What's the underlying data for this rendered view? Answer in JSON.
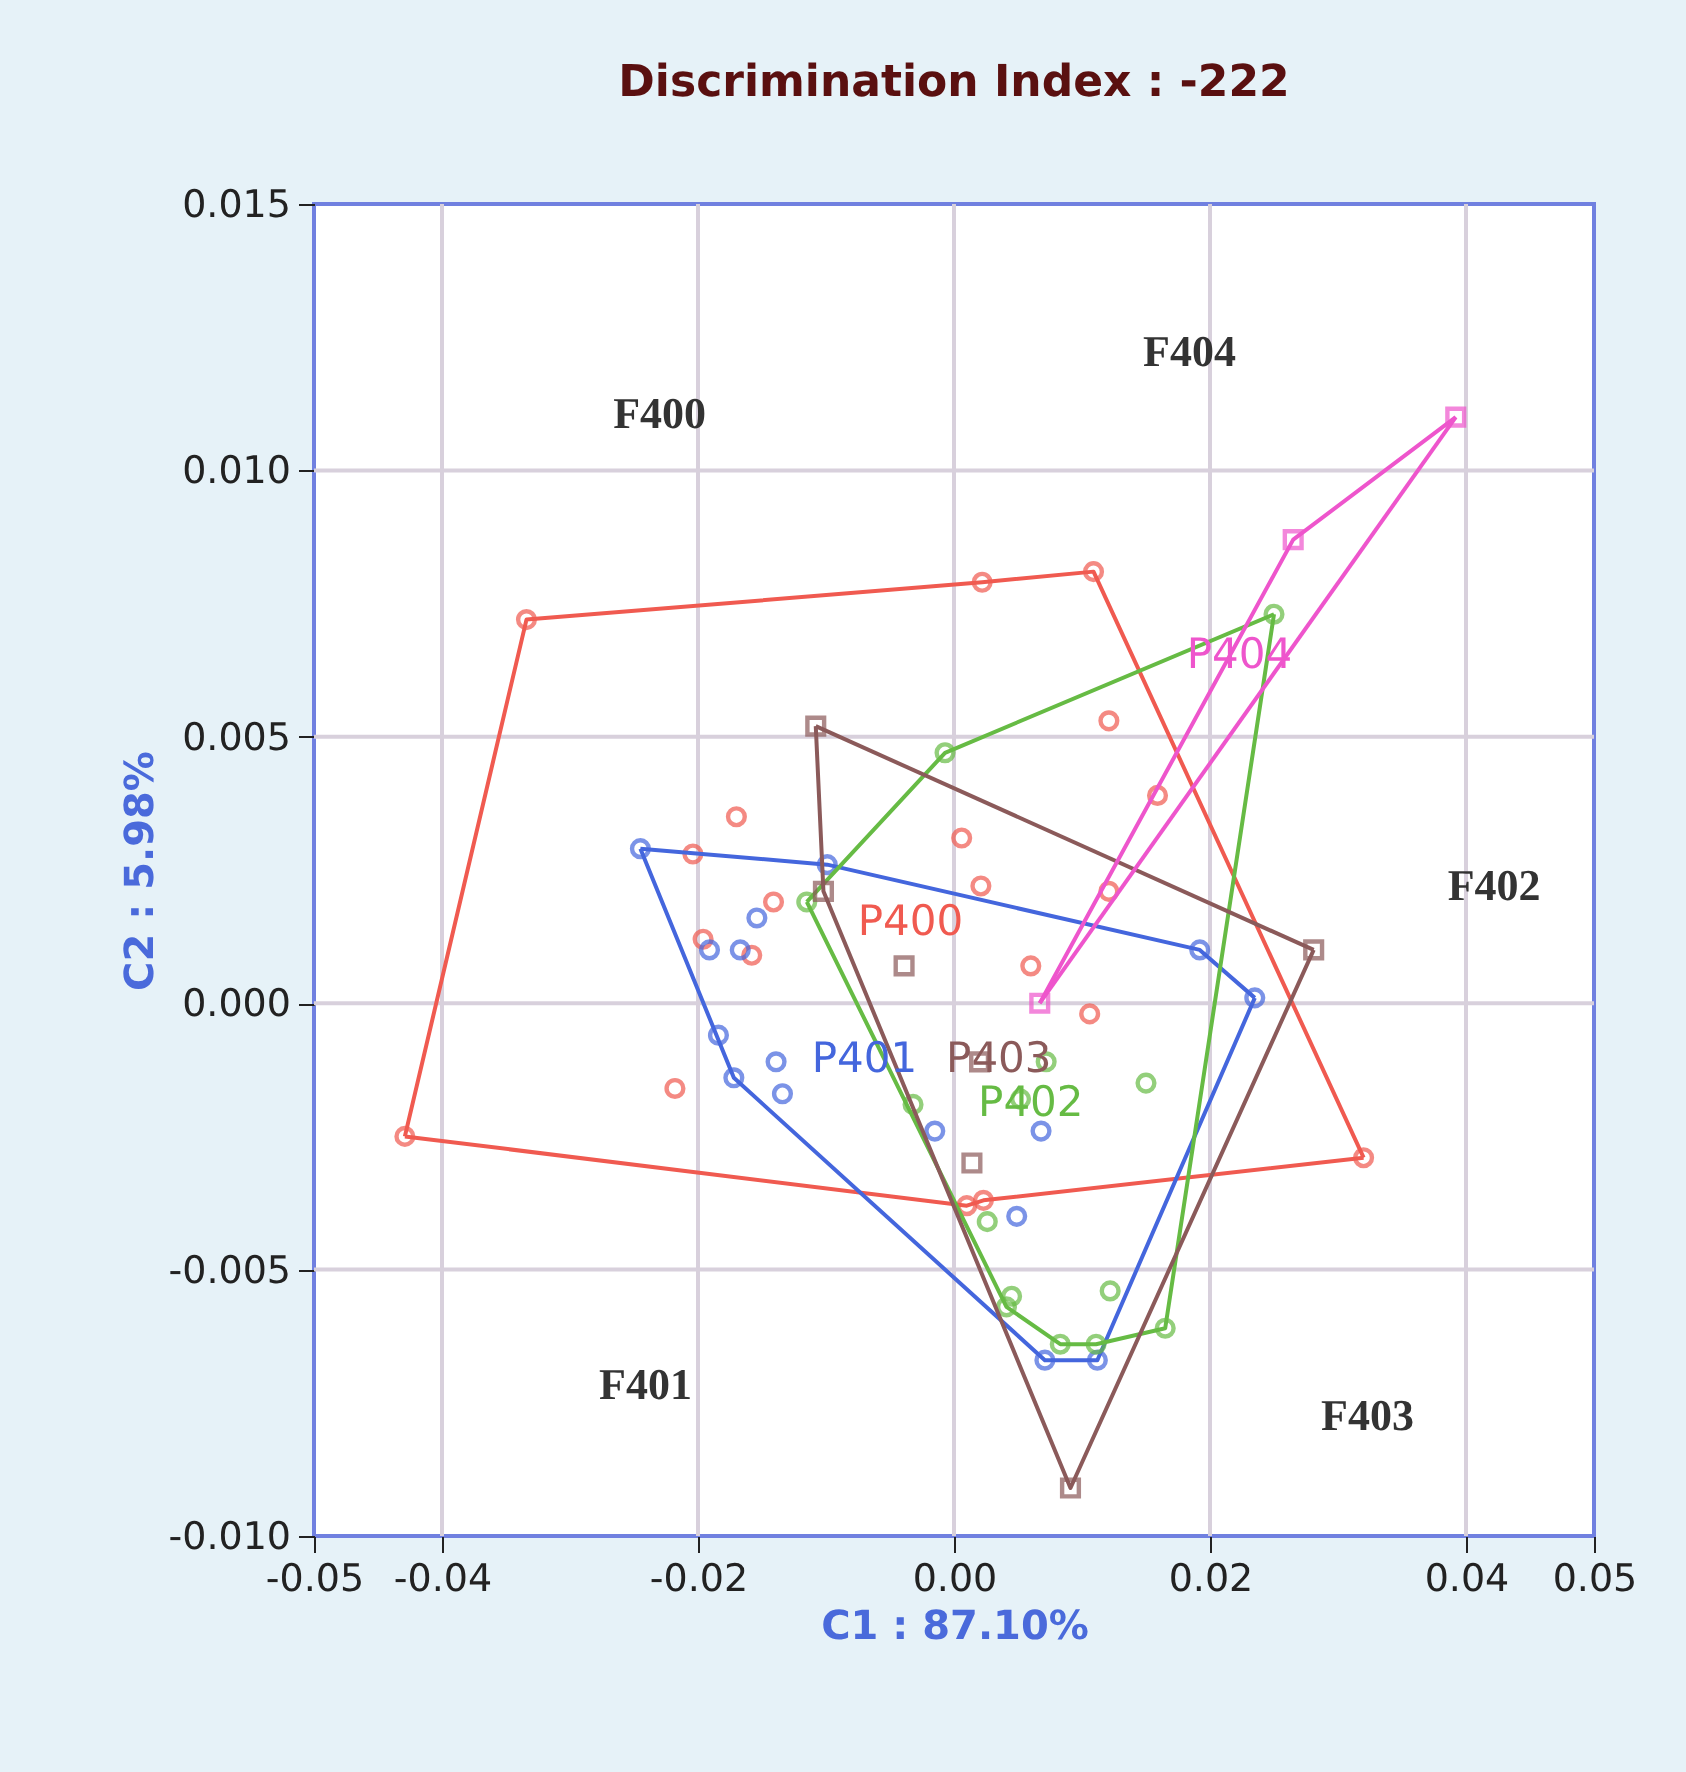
{
  "chart_data": {
    "type": "scatter",
    "title": "Discrimination Index : -222",
    "xlabel": "C1 : 87.10%",
    "ylabel": "C2 : 5.98%",
    "xlim": [
      -0.05,
      0.05
    ],
    "ylim": [
      -0.01,
      0.015
    ],
    "xticks": [
      -0.05,
      -0.04,
      -0.02,
      {
        "value": 0,
        "label": "0.00"
      },
      0.02,
      0.04,
      0.05
    ],
    "yticks": [
      {
        "value": -0.01,
        "label": "-0.010"
      },
      -0.005,
      {
        "value": 0,
        "label": "0.000"
      },
      0.005,
      {
        "value": 0.01,
        "label": "0.010"
      },
      0.015
    ],
    "grid": true,
    "series": [
      {
        "marker": "circle",
        "color": "#f05a50",
        "x": [
          -0.0334,
          0.0022,
          0.0109,
          -0.0429,
          -0.017,
          -0.0204,
          -0.0141,
          -0.0196,
          -0.0158,
          -0.0218,
          0.0006,
          0.0021,
          0.0121,
          0.0159,
          0.0121,
          0.006,
          0.0106,
          0.001,
          0.0023,
          0.032
        ],
        "values": [
          0.0072,
          0.0079,
          0.0081,
          -0.0025,
          0.0035,
          0.0028,
          0.0019,
          0.0012,
          0.0009,
          -0.0016,
          0.0031,
          0.0022,
          0.0053,
          0.0039,
          0.0021,
          0.0007,
          -0.0002,
          -0.0038,
          -0.0037,
          -0.0029
        ]
      },
      {
        "type": "line",
        "marker": "none",
        "color": "#f05a50",
        "x": [
          -0.0429,
          -0.0334,
          0.0022,
          0.0109,
          0.032
        ],
        "values": [
          -0.0025,
          0.0072,
          0.0079,
          0.0081,
          -0.0029
        ]
      },
      {
        "type": "line",
        "marker": "none",
        "color": "#f05a50",
        "x": [
          -0.0429,
          0.001,
          0.0023,
          0.032
        ],
        "values": [
          -0.0025,
          -0.0038,
          -0.0037,
          -0.0029
        ]
      },
      {
        "marker": "circle",
        "color": "#4466dd",
        "x": [
          -0.0245,
          -0.0099,
          -0.0154,
          -0.0191,
          -0.0167,
          -0.0184,
          -0.0172,
          -0.0139,
          -0.0134,
          -0.0015,
          0.0192,
          0.0235,
          0.0068,
          0.0049,
          0.0071,
          0.0112
        ],
        "values": [
          0.0029,
          0.0026,
          0.0016,
          0.001,
          0.001,
          -0.0006,
          -0.0014,
          -0.0011,
          -0.0017,
          -0.0024,
          0.001,
          0.0001,
          -0.0024,
          -0.004,
          -0.0067,
          -0.0067
        ]
      },
      {
        "type": "line",
        "marker": "none",
        "color": "#4466dd",
        "x": [
          -0.0245,
          -0.0099,
          0.0192,
          0.0235
        ],
        "values": [
          0.0029,
          0.0026,
          0.001,
          0.0001
        ]
      },
      {
        "type": "line",
        "marker": "none",
        "color": "#4466dd",
        "x": [
          -0.0245,
          -0.0172,
          0.0071,
          0.0112,
          0.0235
        ],
        "values": [
          0.0029,
          -0.0014,
          -0.0067,
          -0.0067,
          0.0001
        ]
      },
      {
        "marker": "circle",
        "color": "#66bb44",
        "x": [
          -0.0007,
          -0.0115,
          0.025,
          0.0072,
          0.015,
          -0.0032,
          0.0026,
          0.0045,
          0.0041,
          0.0122,
          0.0165,
          0.0083,
          0.0111,
          0.0052
        ],
        "values": [
          0.0047,
          0.0019,
          0.0073,
          -0.0011,
          -0.0015,
          -0.0019,
          -0.0041,
          -0.0055,
          -0.0057,
          -0.0054,
          -0.0061,
          -0.0064,
          -0.0064,
          -0.0018
        ]
      },
      {
        "type": "line",
        "marker": "none",
        "color": "#66bb44",
        "x": [
          -0.0115,
          -0.0007,
          0.025
        ],
        "values": [
          0.0019,
          0.0047,
          0.0073
        ]
      },
      {
        "type": "line",
        "marker": "none",
        "color": "#66bb44",
        "x": [
          -0.0115,
          0.0041,
          0.0083,
          0.0111,
          0.0165,
          0.025
        ],
        "values": [
          0.0019,
          -0.0057,
          -0.0064,
          -0.0064,
          -0.0061,
          0.0073
        ]
      },
      {
        "marker": "square",
        "color": "#8b5a5a",
        "x": [
          -0.0108,
          -0.0102,
          -0.0039,
          0.0014,
          0.0281,
          0.0091,
          0.002
        ],
        "values": [
          0.0052,
          0.0021,
          0.0007,
          -0.003,
          0.001,
          -0.0091,
          -0.0011
        ]
      },
      {
        "type": "line",
        "marker": "none",
        "color": "#8b5a5a",
        "x": [
          -0.0108,
          0.0281
        ],
        "values": [
          0.0052,
          0.001
        ]
      },
      {
        "type": "line",
        "marker": "none",
        "color": "#8b5a5a",
        "x": [
          -0.0108,
          -0.0102,
          0.0091,
          0.0281
        ],
        "values": [
          0.0052,
          0.0021,
          -0.0091,
          0.001
        ]
      },
      {
        "marker": "square",
        "color": "#ee55cc",
        "x": [
          0.0067,
          0.0265,
          0.0392
        ],
        "values": [
          0.0,
          0.0087,
          0.011
        ]
      },
      {
        "type": "line",
        "marker": "none",
        "color": "#ee55cc",
        "x": [
          0.0067,
          0.0265,
          0.0392
        ],
        "values": [
          0.0,
          0.0087,
          0.011
        ]
      },
      {
        "type": "line",
        "marker": "none",
        "color": "#ee55cc",
        "x": [
          0.0067,
          0.0392
        ],
        "values": [
          0.0,
          0.011
        ]
      }
    ],
    "annotations": [
      "F400",
      "F401",
      "F402",
      "F403",
      "F404",
      "P400",
      "P401",
      "P403",
      "P402",
      "P404"
    ]
  }
}
